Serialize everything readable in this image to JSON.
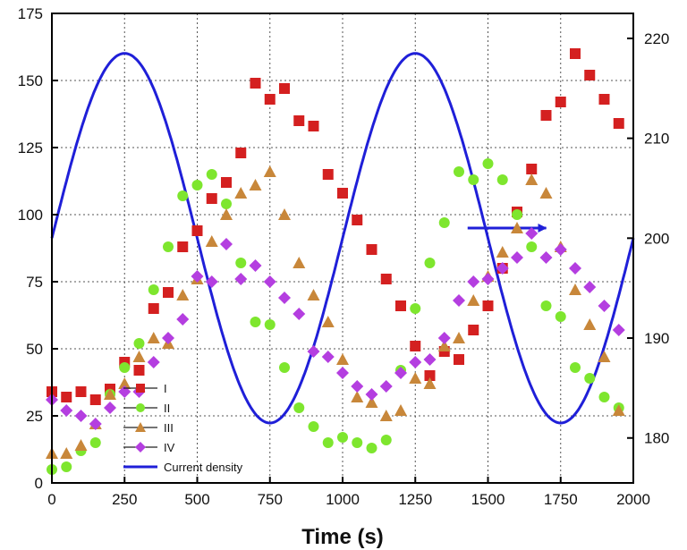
{
  "chart_data": {
    "type": "scatter",
    "title": "",
    "xlabel": "Time (s)",
    "ylabel": "",
    "y2label": "",
    "xlim": [
      0,
      2000
    ],
    "ylim": [
      0,
      175
    ],
    "y2lim": [
      175.5,
      222.5
    ],
    "grid": true,
    "legend_placement": "bottom-left",
    "x_ticks": [
      0,
      250,
      500,
      750,
      1000,
      1250,
      1500,
      1750,
      2000
    ],
    "x_tick_labels": [
      "0",
      "250",
      "500",
      "750",
      "1000",
      "1250",
      "1500",
      "1750",
      "2000"
    ],
    "y_ticks": [
      0,
      25,
      50,
      75,
      100,
      125,
      150,
      175
    ],
    "y_tick_labels": [
      "0",
      "25",
      "50",
      "75",
      "100",
      "125",
      "150",
      "175"
    ],
    "y2_ticks": [
      180,
      190,
      200,
      210,
      220
    ],
    "y2_tick_labels": [
      "180",
      "190",
      "200",
      "210",
      "220"
    ],
    "line_series": {
      "name": "Current density",
      "color": "#1f1fd8",
      "axis": "right",
      "mean": 200,
      "amplitude": 18.5,
      "period": 1000,
      "peak_x": 250
    },
    "arrow": {
      "from_x": 1430,
      "to_x": 1700,
      "y": 95.0,
      "direction": "right"
    },
    "series": [
      {
        "name": "I",
        "marker": "square",
        "color": "#d42020",
        "points": [
          [
            0,
            34
          ],
          [
            50,
            32
          ],
          [
            100,
            34
          ],
          [
            150,
            31
          ],
          [
            200,
            35
          ],
          [
            250,
            45
          ],
          [
            300,
            42
          ],
          [
            350,
            65
          ],
          [
            400,
            71
          ],
          [
            450,
            88
          ],
          [
            500,
            94
          ],
          [
            550,
            106
          ],
          [
            600,
            112
          ],
          [
            650,
            123
          ],
          [
            700,
            149
          ],
          [
            750,
            143
          ],
          [
            800,
            147
          ],
          [
            850,
            135
          ],
          [
            900,
            133
          ],
          [
            950,
            115
          ],
          [
            1000,
            108
          ],
          [
            1050,
            98
          ],
          [
            1100,
            87
          ],
          [
            1150,
            76
          ],
          [
            1200,
            66
          ],
          [
            1250,
            51
          ],
          [
            1300,
            40
          ],
          [
            1350,
            49
          ],
          [
            1400,
            46
          ],
          [
            1450,
            57
          ],
          [
            1500,
            66
          ],
          [
            1550,
            80
          ],
          [
            1600,
            101
          ],
          [
            1650,
            117
          ],
          [
            1700,
            137
          ],
          [
            1750,
            142
          ],
          [
            1800,
            160
          ],
          [
            1850,
            152
          ],
          [
            1900,
            143
          ],
          [
            1950,
            134
          ]
        ]
      },
      {
        "name": "II",
        "marker": "circle",
        "color": "#7ee62e",
        "points": [
          [
            0,
            5
          ],
          [
            50,
            6
          ],
          [
            100,
            12
          ],
          [
            150,
            15
          ],
          [
            200,
            33
          ],
          [
            250,
            43
          ],
          [
            300,
            52
          ],
          [
            350,
            72
          ],
          [
            400,
            88
          ],
          [
            450,
            107
          ],
          [
            500,
            111
          ],
          [
            550,
            115
          ],
          [
            600,
            104
          ],
          [
            650,
            82
          ],
          [
            700,
            60
          ],
          [
            750,
            59
          ],
          [
            800,
            43
          ],
          [
            850,
            28
          ],
          [
            900,
            21
          ],
          [
            950,
            15
          ],
          [
            1000,
            17
          ],
          [
            1050,
            15
          ],
          [
            1100,
            13
          ],
          [
            1150,
            16
          ],
          [
            1200,
            42
          ],
          [
            1250,
            65
          ],
          [
            1300,
            82
          ],
          [
            1350,
            97
          ],
          [
            1400,
            116
          ],
          [
            1450,
            113
          ],
          [
            1500,
            119
          ],
          [
            1550,
            113
          ],
          [
            1600,
            100
          ],
          [
            1650,
            88
          ],
          [
            1700,
            66
          ],
          [
            1750,
            62
          ],
          [
            1800,
            43
          ],
          [
            1850,
            39
          ],
          [
            1900,
            32
          ],
          [
            1950,
            28
          ]
        ]
      },
      {
        "name": "III",
        "marker": "triangle",
        "color": "#c8873a",
        "points": [
          [
            0,
            11
          ],
          [
            50,
            11
          ],
          [
            100,
            14
          ],
          [
            150,
            22
          ],
          [
            200,
            33
          ],
          [
            250,
            37
          ],
          [
            300,
            47
          ],
          [
            350,
            54
          ],
          [
            400,
            52
          ],
          [
            450,
            70
          ],
          [
            500,
            76
          ],
          [
            550,
            90
          ],
          [
            600,
            100
          ],
          [
            650,
            108
          ],
          [
            700,
            111
          ],
          [
            750,
            116
          ],
          [
            800,
            100
          ],
          [
            850,
            82
          ],
          [
            900,
            70
          ],
          [
            950,
            60
          ],
          [
            1000,
            46
          ],
          [
            1050,
            32
          ],
          [
            1100,
            30
          ],
          [
            1150,
            25
          ],
          [
            1200,
            27
          ],
          [
            1250,
            39
          ],
          [
            1300,
            37
          ],
          [
            1350,
            51
          ],
          [
            1400,
            54
          ],
          [
            1450,
            68
          ],
          [
            1500,
            77
          ],
          [
            1550,
            86
          ],
          [
            1600,
            95
          ],
          [
            1650,
            113
          ],
          [
            1700,
            108
          ],
          [
            1750,
            88
          ],
          [
            1800,
            72
          ],
          [
            1850,
            59
          ],
          [
            1900,
            47
          ],
          [
            1950,
            27
          ]
        ]
      },
      {
        "name": "IV",
        "marker": "diamond",
        "color": "#b43ee0",
        "points": [
          [
            0,
            31
          ],
          [
            50,
            27
          ],
          [
            100,
            25
          ],
          [
            150,
            22
          ],
          [
            200,
            28
          ],
          [
            250,
            34
          ],
          [
            300,
            34
          ],
          [
            350,
            45
          ],
          [
            400,
            54
          ],
          [
            450,
            61
          ],
          [
            500,
            77
          ],
          [
            550,
            75
          ],
          [
            600,
            89
          ],
          [
            650,
            76
          ],
          [
            700,
            81
          ],
          [
            750,
            75
          ],
          [
            800,
            69
          ],
          [
            850,
            63
          ],
          [
            900,
            49
          ],
          [
            950,
            47
          ],
          [
            1000,
            41
          ],
          [
            1050,
            36
          ],
          [
            1100,
            33
          ],
          [
            1150,
            36
          ],
          [
            1200,
            41
          ],
          [
            1250,
            45
          ],
          [
            1300,
            46
          ],
          [
            1350,
            54
          ],
          [
            1400,
            68
          ],
          [
            1450,
            75
          ],
          [
            1500,
            76
          ],
          [
            1550,
            80
          ],
          [
            1600,
            84
          ],
          [
            1650,
            93
          ],
          [
            1700,
            84
          ],
          [
            1750,
            87
          ],
          [
            1800,
            80
          ],
          [
            1850,
            73
          ],
          [
            1900,
            66
          ],
          [
            1950,
            57
          ]
        ]
      }
    ]
  }
}
